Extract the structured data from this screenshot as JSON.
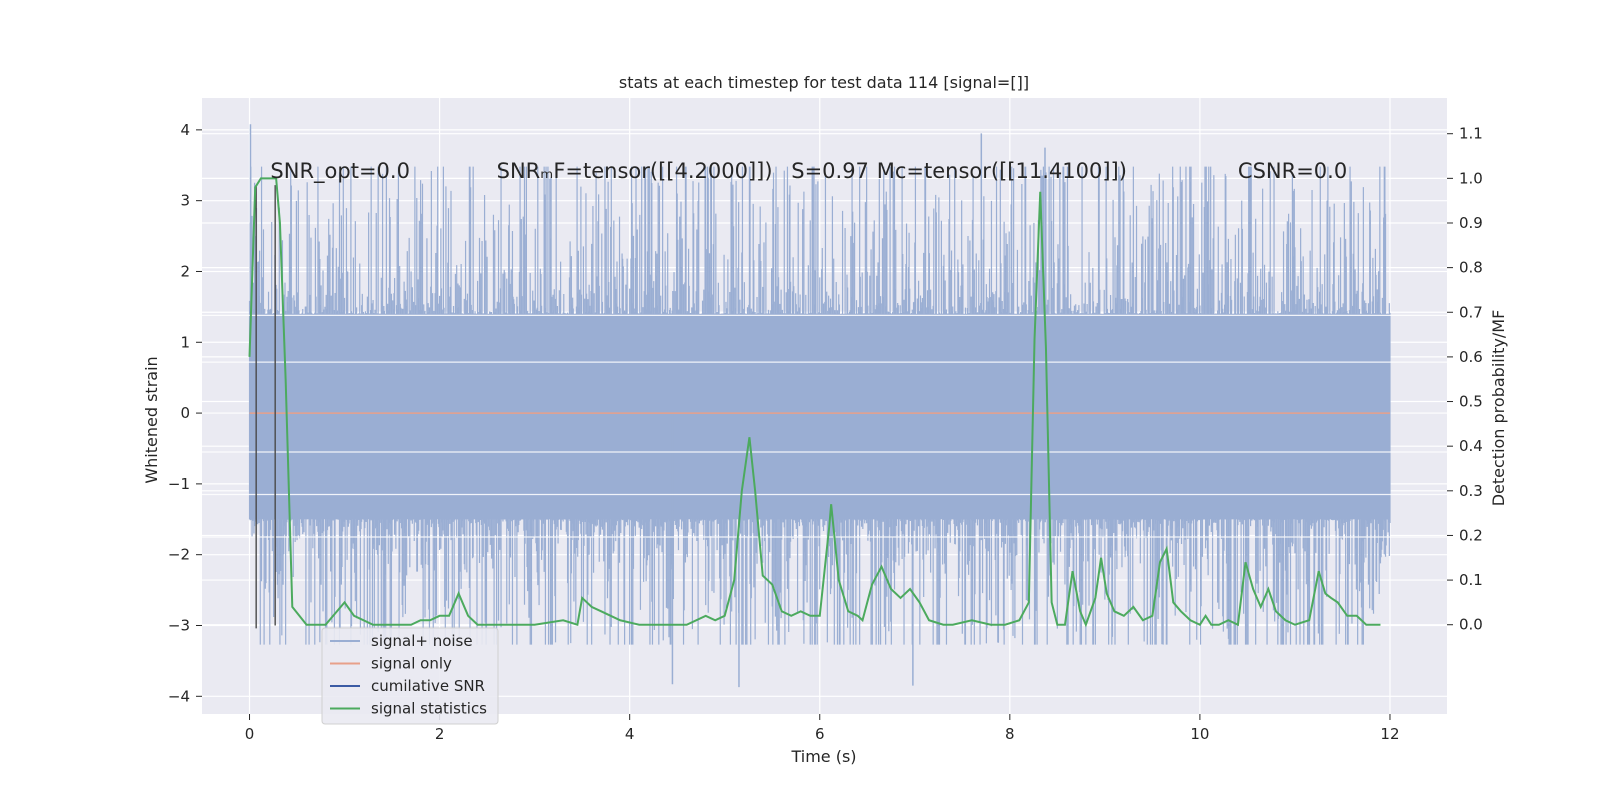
{
  "chart_data": {
    "type": "line",
    "title": "stats at each timestep for test data 114 [signal=[]]",
    "xlabel": "Time (s)",
    "ylabel": "Whitened strain",
    "ylabel_right": "Detection probability/MF",
    "xlim": [
      -0.5,
      12.6
    ],
    "ylim": [
      -4.25,
      4.45
    ],
    "ylim_right": [
      -0.2,
      1.18
    ],
    "x_ticks": [
      0,
      2,
      4,
      6,
      8,
      10,
      12
    ],
    "x_tick_labels": [
      "0",
      "2",
      "4",
      "6",
      "8",
      "10",
      "12"
    ],
    "y_ticks": [
      4,
      3,
      2,
      1,
      0,
      -1,
      -2,
      -3,
      -4
    ],
    "y_tick_labels": [
      "4",
      "3",
      "2",
      "1",
      "0",
      "−1",
      "−2",
      "−3",
      "−4"
    ],
    "y_right_ticks": [
      1.1,
      1.0,
      0.9,
      0.8,
      0.7,
      0.6,
      0.5,
      0.4,
      0.3,
      0.2,
      0.1,
      0.0
    ],
    "y_right_tick_labels": [
      "1.1",
      "1.0",
      "0.9",
      "0.8",
      "0.7",
      "0.6",
      "0.5",
      "0.4",
      "0.3",
      "0.2",
      "0.1",
      "0.0"
    ],
    "grid": true,
    "legend_position": "lower-left",
    "annotations": [
      {
        "id": "snr-opt",
        "text": "SNR_opt=0.0",
        "x": 0.22,
        "y": 3.32
      },
      {
        "id": "snr-mf",
        "text": "SNRₘF=tensor([[4.2000]])",
        "x": 2.6,
        "y": 3.32
      },
      {
        "id": "s-value",
        "text": "S=0.97",
        "x": 5.7,
        "y": 3.32
      },
      {
        "id": "mc-value",
        "text": "Mᴄ=tensor([[11.4100]])",
        "x": 6.6,
        "y": 3.32
      },
      {
        "id": "csnr",
        "text": "CSNR=0.0",
        "x": 10.4,
        "y": 3.32
      }
    ],
    "series": [
      {
        "name": "signal+ noise",
        "color": "#9aaed3",
        "axis": "left",
        "x_range": [
          0,
          12
        ],
        "band": {
          "typical_low": -2.0,
          "typical_high": 2.0,
          "peak_low": -3.87,
          "peak_high": 4.08
        },
        "peaks": [
          [
            0.01,
            4.08
          ],
          [
            4.45,
            -3.83
          ],
          [
            5.15,
            -3.87
          ],
          [
            6.98,
            -3.85
          ],
          [
            7.7,
            3.95
          ],
          [
            8.37,
            3.75
          ],
          [
            11.34,
            3.0
          ]
        ]
      },
      {
        "name": "signal only",
        "color": "#e8a08a",
        "axis": "left",
        "x": [
          0,
          12
        ],
        "y": [
          0,
          0
        ]
      },
      {
        "name": "cumilative SNR",
        "color": "#3b5ba4",
        "axis": "left",
        "segments": [
          [
            [
              0.07,
              3.22
            ],
            [
              0.07,
              -3.04
            ]
          ],
          [
            [
              0.27,
              3.22
            ],
            [
              0.27,
              -3.0
            ]
          ]
        ]
      },
      {
        "name": "signal statistics",
        "color": "#4caa5e",
        "axis": "right",
        "x": [
          0.0,
          0.06,
          0.12,
          0.2,
          0.28,
          0.32,
          0.38,
          0.45,
          0.6,
          0.8,
          1.0,
          1.1,
          1.3,
          1.5,
          1.7,
          1.8,
          1.9,
          2.0,
          2.1,
          2.2,
          2.3,
          2.4,
          2.6,
          3.0,
          3.3,
          3.45,
          3.5,
          3.6,
          3.7,
          3.9,
          4.1,
          4.3,
          4.4,
          4.6,
          4.8,
          4.9,
          5.0,
          5.1,
          5.18,
          5.26,
          5.32,
          5.4,
          5.5,
          5.6,
          5.7,
          5.8,
          5.9,
          6.0,
          6.1,
          6.12,
          6.2,
          6.3,
          6.4,
          6.45,
          6.55,
          6.65,
          6.75,
          6.85,
          6.95,
          7.05,
          7.15,
          7.3,
          7.4,
          7.6,
          7.8,
          7.95,
          8.1,
          8.2,
          8.26,
          8.32,
          8.38,
          8.44,
          8.5,
          8.58,
          8.66,
          8.74,
          8.8,
          8.9,
          8.96,
          9.02,
          9.1,
          9.2,
          9.3,
          9.4,
          9.5,
          9.58,
          9.65,
          9.72,
          9.8,
          9.9,
          10.0,
          10.06,
          10.12,
          10.2,
          10.3,
          10.4,
          10.48,
          10.56,
          10.64,
          10.72,
          10.8,
          10.9,
          11.0,
          11.15,
          11.25,
          11.32,
          11.38,
          11.45,
          11.55,
          11.65,
          11.75,
          11.9
        ],
        "y": [
          0.6,
          0.98,
          1.0,
          1.0,
          1.0,
          0.9,
          0.55,
          0.04,
          0.0,
          0.0,
          0.05,
          0.02,
          0.0,
          0.0,
          0.0,
          0.01,
          0.01,
          0.02,
          0.02,
          0.07,
          0.02,
          0.0,
          0.0,
          0.0,
          0.01,
          0.0,
          0.06,
          0.04,
          0.03,
          0.01,
          0.0,
          0.0,
          0.0,
          0.0,
          0.02,
          0.01,
          0.02,
          0.1,
          0.3,
          0.42,
          0.3,
          0.11,
          0.09,
          0.03,
          0.02,
          0.03,
          0.02,
          0.02,
          0.22,
          0.27,
          0.1,
          0.03,
          0.02,
          0.01,
          0.09,
          0.13,
          0.08,
          0.06,
          0.08,
          0.05,
          0.01,
          0.0,
          0.0,
          0.01,
          0.0,
          0.0,
          0.01,
          0.05,
          0.64,
          0.97,
          0.62,
          0.05,
          0.0,
          0.0,
          0.12,
          0.03,
          0.0,
          0.06,
          0.15,
          0.07,
          0.03,
          0.02,
          0.04,
          0.01,
          0.02,
          0.14,
          0.17,
          0.05,
          0.03,
          0.01,
          0.0,
          0.02,
          0.0,
          0.0,
          0.01,
          0.0,
          0.14,
          0.08,
          0.04,
          0.08,
          0.03,
          0.01,
          0.0,
          0.01,
          0.12,
          0.07,
          0.06,
          0.05,
          0.02,
          0.02,
          0.0,
          0.0
        ]
      }
    ]
  }
}
